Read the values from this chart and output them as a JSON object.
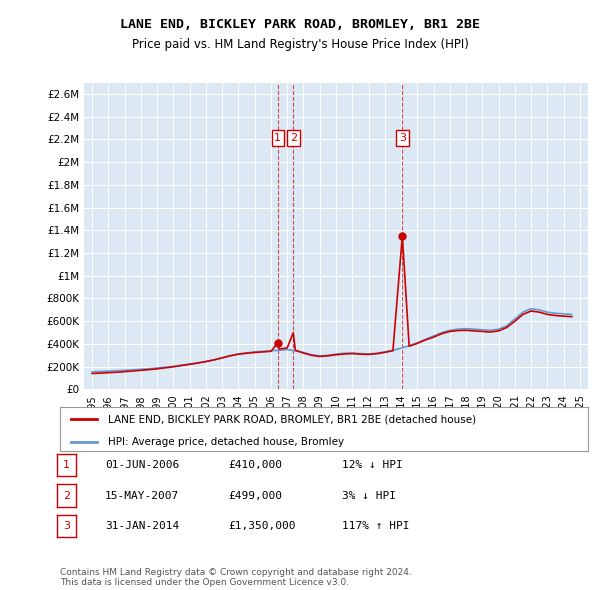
{
  "title": "LANE END, BICKLEY PARK ROAD, BROMLEY, BR1 2BE",
  "subtitle": "Price paid vs. HM Land Registry's House Price Index (HPI)",
  "background_color": "#dce9f5",
  "plot_bg_color": "#dce9f5",
  "legend_line1": "LANE END, BICKLEY PARK ROAD, BROMLEY, BR1 2BE (detached house)",
  "legend_line2": "HPI: Average price, detached house, Bromley",
  "footnote1": "Contains HM Land Registry data © Crown copyright and database right 2024.",
  "footnote2": "This data is licensed under the Open Government Licence v3.0.",
  "transactions": [
    {
      "num": 1,
      "date": "01-JUN-2006",
      "price": 410000,
      "pct": "12%",
      "dir": "↓",
      "year": 2006.42
    },
    {
      "num": 2,
      "date": "15-MAY-2007",
      "price": 499000,
      "pct": "3%",
      "dir": "↓",
      "year": 2007.37
    },
    {
      "num": 3,
      "date": "31-JAN-2014",
      "price": 1350000,
      "pct": "117%",
      "dir": "↑",
      "year": 2014.08
    }
  ],
  "hpi_line_color": "#6699cc",
  "price_line_color": "#cc0000",
  "hpi_data_x": [
    1995,
    1995.5,
    1996,
    1996.5,
    1997,
    1997.5,
    1998,
    1998.5,
    1999,
    1999.5,
    2000,
    2000.5,
    2001,
    2001.5,
    2002,
    2002.5,
    2003,
    2003.5,
    2004,
    2004.5,
    2005,
    2005.5,
    2006,
    2006.5,
    2007,
    2007.5,
    2008,
    2008.5,
    2009,
    2009.5,
    2010,
    2010.5,
    2011,
    2011.5,
    2012,
    2012.5,
    2013,
    2013.5,
    2014,
    2014.5,
    2015,
    2015.5,
    2016,
    2016.5,
    2017,
    2017.5,
    2018,
    2018.5,
    2019,
    2019.5,
    2020,
    2020.5,
    2021,
    2021.5,
    2022,
    2022.5,
    2023,
    2023.5,
    2024,
    2024.5
  ],
  "hpi_data_y": [
    155000,
    158000,
    161000,
    165000,
    168000,
    172000,
    177000,
    182000,
    188000,
    195000,
    203000,
    213000,
    223000,
    233000,
    245000,
    260000,
    278000,
    296000,
    312000,
    322000,
    330000,
    335000,
    340000,
    345000,
    350000,
    340000,
    325000,
    305000,
    295000,
    300000,
    310000,
    318000,
    320000,
    315000,
    312000,
    318000,
    330000,
    345000,
    362000,
    385000,
    410000,
    440000,
    470000,
    500000,
    520000,
    530000,
    535000,
    530000,
    525000,
    520000,
    530000,
    560000,
    620000,
    680000,
    710000,
    700000,
    680000,
    670000,
    665000,
    660000
  ],
  "price_data_x": [
    1995,
    1995.5,
    1996,
    1996.5,
    1997,
    1997.5,
    1998,
    1998.5,
    1999,
    1999.5,
    2000,
    2000.5,
    2001,
    2001.5,
    2002,
    2002.5,
    2003,
    2003.5,
    2004,
    2004.5,
    2005,
    2005.5,
    2006,
    2006.42,
    2006.5,
    2007,
    2007.37,
    2007.5,
    2008,
    2008.5,
    2009,
    2009.5,
    2010,
    2010.5,
    2011,
    2011.5,
    2012,
    2012.5,
    2013,
    2013.5,
    2014.08,
    2014.5,
    2015,
    2015.5,
    2016,
    2016.5,
    2017,
    2017.5,
    2018,
    2018.5,
    2019,
    2019.5,
    2020,
    2020.5,
    2021,
    2021.5,
    2022,
    2022.5,
    2023,
    2023.5,
    2024,
    2024.5
  ],
  "price_data_y": [
    140000,
    143000,
    147000,
    151000,
    156000,
    162000,
    168000,
    174000,
    181000,
    190000,
    199000,
    210000,
    221000,
    232000,
    245000,
    260000,
    278000,
    296000,
    310000,
    318000,
    325000,
    330000,
    335000,
    410000,
    355000,
    365000,
    499000,
    345000,
    320000,
    300000,
    290000,
    295000,
    305000,
    312000,
    315000,
    310000,
    308000,
    314000,
    326000,
    340000,
    1350000,
    380000,
    405000,
    435000,
    460000,
    490000,
    510000,
    518000,
    520000,
    515000,
    510000,
    505000,
    515000,
    545000,
    600000,
    660000,
    690000,
    680000,
    660000,
    650000,
    645000,
    640000
  ],
  "ylim": [
    0,
    2700000
  ],
  "xlim": [
    1994.5,
    2025.5
  ],
  "yticks": [
    0,
    200000,
    400000,
    600000,
    800000,
    1000000,
    1200000,
    1400000,
    1600000,
    1800000,
    2000000,
    2200000,
    2400000,
    2600000
  ],
  "xticks": [
    1995,
    1996,
    1997,
    1998,
    1999,
    2000,
    2001,
    2002,
    2003,
    2004,
    2005,
    2006,
    2007,
    2008,
    2009,
    2010,
    2011,
    2012,
    2013,
    2014,
    2015,
    2016,
    2017,
    2018,
    2019,
    2020,
    2021,
    2022,
    2023,
    2024,
    2025
  ]
}
